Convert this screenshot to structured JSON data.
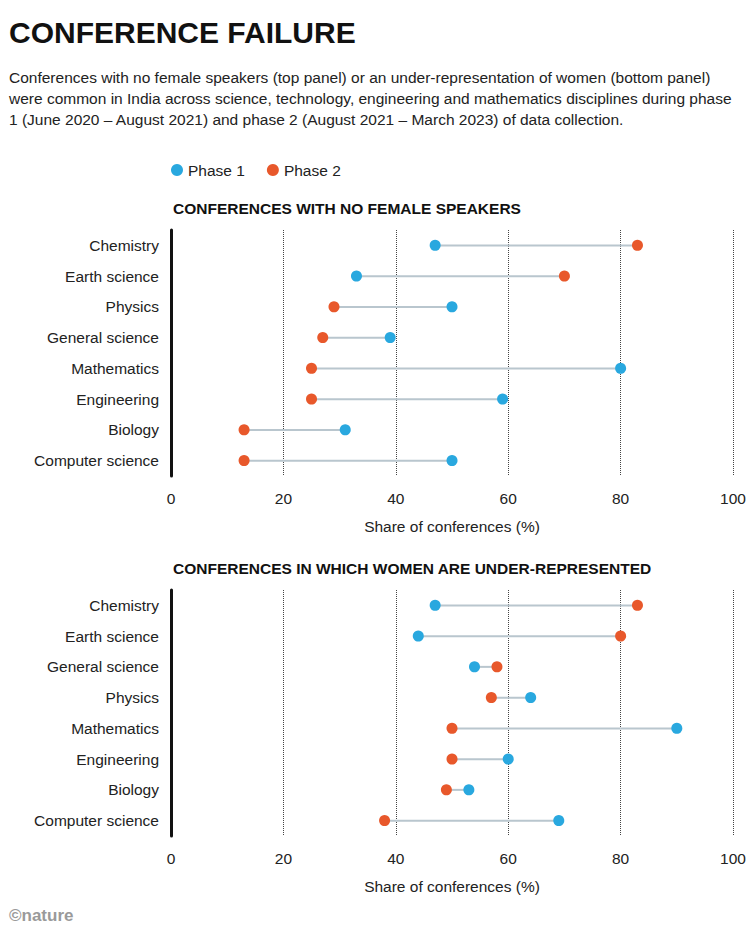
{
  "title": "CONFERENCE FAILURE",
  "subtitle": "Conferences with no female speakers (top panel) or an under-representation of women (bottom panel) were common in India across science, technology, engineering and mathematics disciplines during phase 1 (June 2020 – August 2021) and phase 2 (August 2021 – March 2023) of data collection.",
  "source": "©nature",
  "chart_data": [
    {
      "type": "dumbbell",
      "title": "CONFERENCES WITH NO FEMALE SPEAKERS",
      "xlabel": "Share of conferences (%)",
      "orientation": "horizontal",
      "grid": true,
      "legend": "top-left",
      "categories": [
        "Chemistry",
        "Earth science",
        "Physics",
        "General science",
        "Mathematics",
        "Engineering",
        "Biology",
        "Computer science"
      ],
      "series": [
        {
          "name": "Phase 1",
          "color": "#29a8df",
          "values": [
            47,
            33,
            50,
            39,
            80,
            59,
            31,
            50
          ]
        },
        {
          "name": "Phase 2",
          "color": "#e8582b",
          "values": [
            83,
            70,
            29,
            27,
            25,
            25,
            13,
            13
          ]
        }
      ],
      "xlim": [
        0,
        100
      ],
      "xticks": [
        0,
        20,
        40,
        60,
        80,
        100
      ]
    },
    {
      "type": "dumbbell",
      "title": "CONFERENCES IN WHICH WOMEN ARE UNDER-REPRESENTED",
      "xlabel": "Share of conferences (%)",
      "orientation": "horizontal",
      "grid": true,
      "categories": [
        "Chemistry",
        "Earth science",
        "General science",
        "Physics",
        "Mathematics",
        "Engineering",
        "Biology",
        "Computer science"
      ],
      "series": [
        {
          "name": "Phase 1",
          "color": "#29a8df",
          "values": [
            47,
            44,
            54,
            64,
            90,
            60,
            53,
            69
          ]
        },
        {
          "name": "Phase 2",
          "color": "#e8582b",
          "values": [
            83,
            80,
            58,
            57,
            50,
            50,
            49,
            38
          ]
        }
      ],
      "xlim": [
        0,
        100
      ],
      "xticks": [
        0,
        20,
        40,
        60,
        80,
        100
      ]
    }
  ]
}
